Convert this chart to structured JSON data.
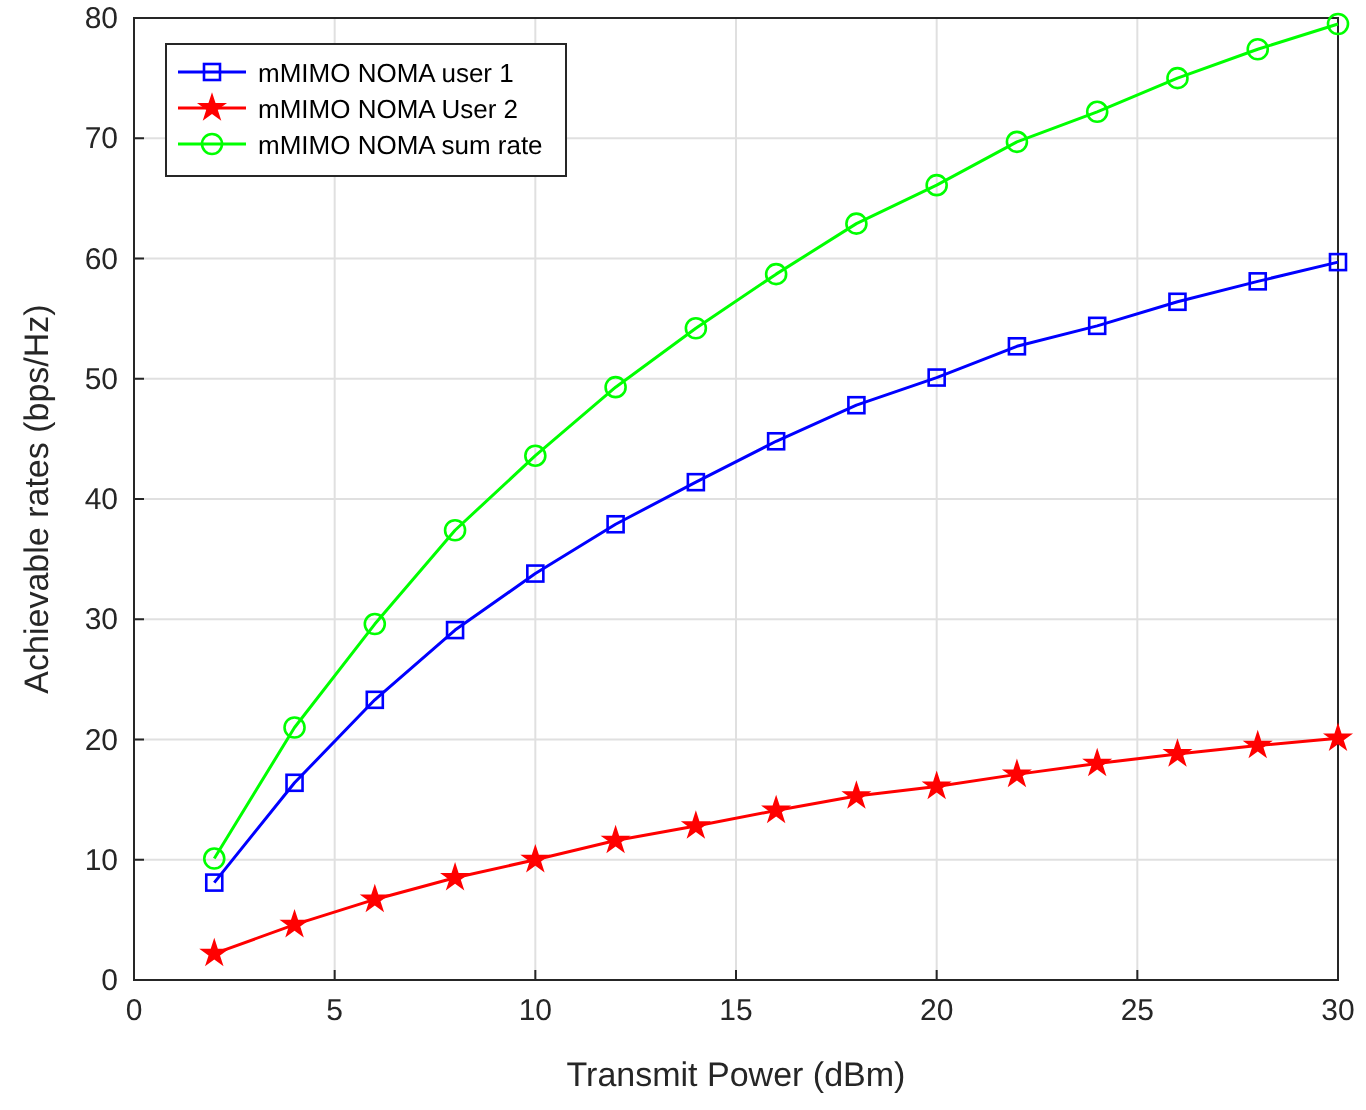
{
  "chart_data": {
    "type": "line",
    "xlabel": "Transmit Power (dBm)",
    "ylabel": "Achievable rates (bps/Hz)",
    "x": [
      2,
      4,
      6,
      8,
      10,
      12,
      14,
      16,
      18,
      20,
      22,
      24,
      26,
      28,
      30
    ],
    "xlim": [
      0,
      30
    ],
    "xticks": [
      0,
      5,
      10,
      15,
      20,
      25,
      30
    ],
    "ylim": [
      0,
      80
    ],
    "yticks": [
      0,
      10,
      20,
      30,
      40,
      50,
      60,
      70,
      80
    ],
    "grid": true,
    "legend": "top left",
    "series": [
      {
        "name": "mMIMO NOMA user 1",
        "color": "#0000ff",
        "marker": "square",
        "values": [
          8.1,
          16.4,
          23.3,
          29.1,
          33.8,
          37.9,
          41.4,
          44.8,
          47.8,
          50.1,
          52.7,
          54.4,
          56.4,
          58.1,
          59.7
        ]
      },
      {
        "name": "mMIMO NOMA User 2",
        "color": "#ff0000",
        "marker": "star",
        "values": [
          2.2,
          4.6,
          6.7,
          8.5,
          10.0,
          11.6,
          12.8,
          14.1,
          15.3,
          16.1,
          17.1,
          18.0,
          18.8,
          19.5,
          20.1
        ]
      },
      {
        "name": "mMIMO NOMA sum rate",
        "color": "#00ff00",
        "marker": "circle",
        "values": [
          10.1,
          21.0,
          29.6,
          37.4,
          43.6,
          49.3,
          54.2,
          58.7,
          62.9,
          66.1,
          69.7,
          72.2,
          75.0,
          77.4,
          79.5
        ]
      }
    ]
  }
}
